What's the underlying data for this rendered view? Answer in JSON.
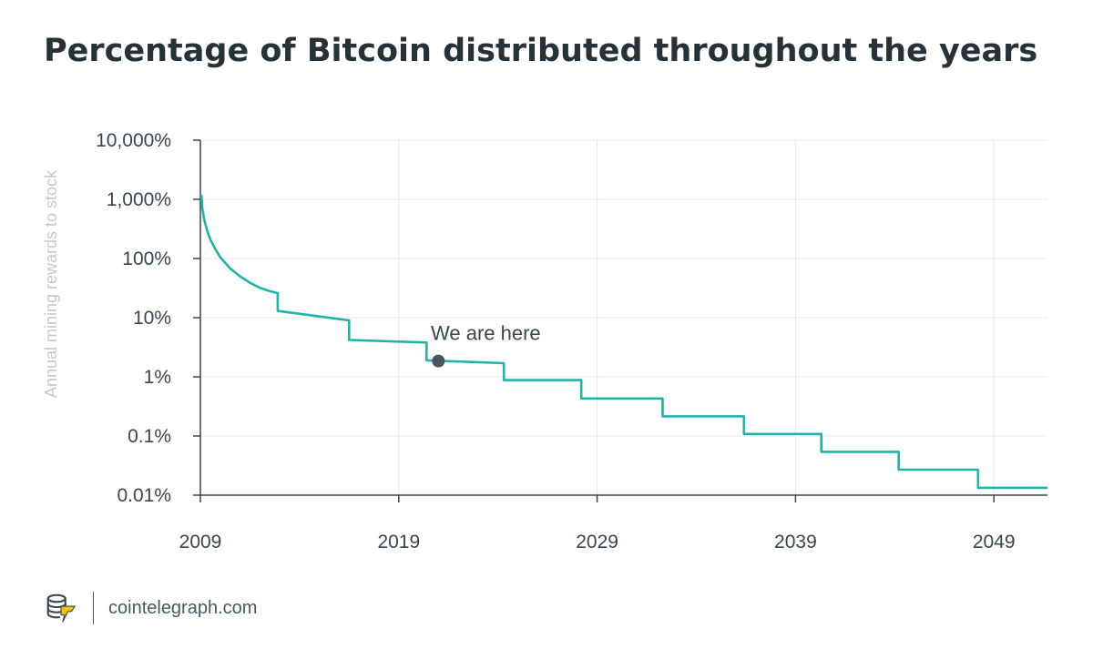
{
  "title": "Percentage of Bitcoin distributed throughout the years",
  "brand": {
    "site": "cointelegraph.com",
    "logo_icon": "cointelegraph-logo-icon"
  },
  "colors": {
    "line": "#1fb5a6",
    "marker": "#4a5560",
    "title": "#263238",
    "axis_text": "#37474f",
    "ylabel": "#c3c9cd",
    "grid": "#e6e9eb"
  },
  "chart_data": {
    "type": "line",
    "title": "Percentage of Bitcoin distributed throughout the years",
    "xlabel": "",
    "ylabel": "Annual mining rewards to stock",
    "yscale": "log",
    "ylim": [
      0.01,
      10000
    ],
    "xlim": [
      2009,
      2051.7
    ],
    "x_ticks": [
      2009,
      2019,
      2029,
      2039,
      2049
    ],
    "x_tick_labels": [
      "2009",
      "2019",
      "2029",
      "2039",
      "2049"
    ],
    "y_ticks": [
      10000,
      1000,
      100,
      10,
      1,
      0.1,
      0.01
    ],
    "y_tick_labels": [
      "10,000%",
      "1,000%",
      "100%",
      "10%",
      "1%",
      "0.1%",
      "0.01%"
    ],
    "grid": true,
    "series": [
      {
        "x": [
          2009.05,
          2009.1,
          2009.2,
          2009.35,
          2009.5,
          2009.75,
          2010.0,
          2010.5,
          2011.0,
          2011.5,
          2012.0,
          2012.5,
          2012.9,
          2012.9,
          2016.5,
          2016.5,
          2020.4,
          2020.4,
          2024.3,
          2024.3,
          2028.2,
          2028.2,
          2032.3,
          2032.3,
          2036.4,
          2036.4,
          2040.3,
          2040.3,
          2044.2,
          2044.2,
          2048.2,
          2048.2,
          2051.7
        ],
        "y": [
          1200,
          700,
          440,
          290,
          210,
          145,
          105,
          68,
          50,
          39,
          32,
          28,
          26,
          13,
          9,
          4.2,
          3.8,
          1.9,
          1.7,
          0.88,
          0.88,
          0.43,
          0.43,
          0.215,
          0.215,
          0.108,
          0.108,
          0.054,
          0.054,
          0.027,
          0.027,
          0.0133,
          0.0133
        ]
      }
    ],
    "annotations": [
      {
        "text": "We are here",
        "x": 2021,
        "y": 1.85
      }
    ]
  }
}
